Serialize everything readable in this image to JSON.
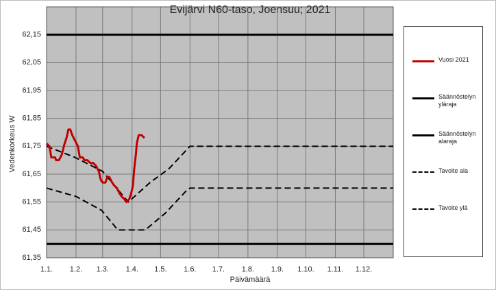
{
  "chart_data": {
    "type": "line",
    "title": "Evijärvi N60-taso, Joensuu; 2021",
    "xlabel": "Päivämäärä",
    "ylabel": "Vedenkorkeus  W",
    "xlim": [
      1,
      366
    ],
    "xticks": [
      {
        "value": 1,
        "label": "1.1."
      },
      {
        "value": 32,
        "label": "1.2."
      },
      {
        "value": 60,
        "label": "1.3."
      },
      {
        "value": 91,
        "label": "1.4."
      },
      {
        "value": 121,
        "label": "1.5."
      },
      {
        "value": 152,
        "label": "1.6."
      },
      {
        "value": 182,
        "label": "1.7."
      },
      {
        "value": 213,
        "label": "1.8."
      },
      {
        "value": 244,
        "label": "1.9."
      },
      {
        "value": 274,
        "label": "1.10."
      },
      {
        "value": 305,
        "label": "1.11."
      },
      {
        "value": 335,
        "label": "1.12."
      }
    ],
    "ylim": [
      61.35,
      62.25
    ],
    "yticks": [
      {
        "value": 61.35,
        "label": "61,35"
      },
      {
        "value": 61.45,
        "label": "61,45"
      },
      {
        "value": 61.55,
        "label": "61,55"
      },
      {
        "value": 61.65,
        "label": "61,65"
      },
      {
        "value": 61.75,
        "label": "61,75"
      },
      {
        "value": 61.85,
        "label": "61,85"
      },
      {
        "value": 61.95,
        "label": "61,95"
      },
      {
        "value": 62.05,
        "label": "62,05"
      },
      {
        "value": 62.15,
        "label": "62,15"
      }
    ],
    "grid": true,
    "legend": "right",
    "series": [
      {
        "name": "Vuosi 2021",
        "color": "#c00000",
        "linestyle": "solid",
        "x": [
          1,
          4,
          6,
          10,
          11,
          14,
          17,
          20,
          22,
          24,
          26,
          28,
          31,
          34,
          36,
          39,
          41,
          44,
          47,
          50,
          53,
          56,
          58,
          60,
          63,
          65,
          67,
          70,
          72,
          75,
          78,
          80,
          83,
          85,
          88,
          90,
          92,
          93,
          95,
          96,
          98,
          101,
          104
        ],
        "values": [
          61.76,
          61.75,
          61.71,
          61.71,
          61.7,
          61.7,
          61.72,
          61.76,
          61.78,
          61.81,
          61.81,
          61.79,
          61.77,
          61.75,
          61.71,
          61.71,
          61.7,
          61.7,
          61.69,
          61.69,
          61.68,
          61.66,
          61.63,
          61.62,
          61.62,
          61.64,
          61.64,
          61.62,
          61.61,
          61.6,
          61.58,
          61.57,
          61.56,
          61.55,
          61.56,
          61.58,
          61.61,
          61.66,
          61.72,
          61.76,
          61.79,
          61.79,
          61.78
        ]
      },
      {
        "name": "Säännöstelyn yläraja",
        "color": "#000000",
        "linestyle": "solid",
        "x": [
          1,
          366
        ],
        "values": [
          62.15,
          62.15
        ]
      },
      {
        "name": "Säännöstelyn alaraja",
        "color": "#000000",
        "linestyle": "solid",
        "x": [
          1,
          366
        ],
        "values": [
          61.4,
          61.4
        ]
      },
      {
        "name": "Tavoite ala",
        "color": "#000000",
        "linestyle": "dashed",
        "x": [
          1,
          32,
          59,
          76,
          105,
          126,
          148,
          152,
          366
        ],
        "values": [
          61.6,
          61.57,
          61.52,
          61.45,
          61.45,
          61.51,
          61.59,
          61.6,
          61.6
        ]
      },
      {
        "name": "Tavoite ylä",
        "color": "#000000",
        "linestyle": "dashed",
        "x": [
          1,
          31,
          60,
          87,
          110,
          130,
          152,
          366
        ],
        "values": [
          61.75,
          61.71,
          61.66,
          61.55,
          61.62,
          61.67,
          61.75,
          61.75
        ]
      }
    ]
  }
}
